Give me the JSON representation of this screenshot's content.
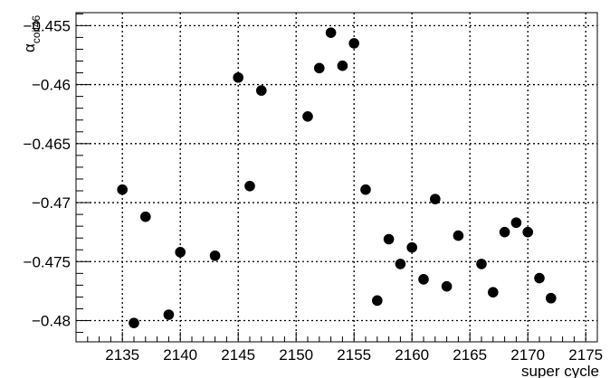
{
  "chart_data": {
    "type": "scatter",
    "title": "",
    "xlabel": "super cycle",
    "ylabel": "α_{coil46}",
    "xlim": [
      2131,
      2176
    ],
    "ylim": [
      -0.4818,
      -0.4539
    ],
    "xticks": [
      2135,
      2140,
      2145,
      2150,
      2155,
      2160,
      2165,
      2170,
      2175
    ],
    "xtick_labels": [
      "2135",
      "2140",
      "2145",
      "2150",
      "2155",
      "2160",
      "2165",
      "2170",
      "2175"
    ],
    "yticks": [
      -0.48,
      -0.475,
      -0.47,
      -0.465,
      -0.46,
      -0.455
    ],
    "ytick_labels": [
      "−0.48",
      "−0.475",
      "−0.47",
      "−0.465",
      "−0.46",
      "−0.455"
    ],
    "grid": true,
    "marker_color": "#000000",
    "x": [
      2135,
      2136,
      2137,
      2139,
      2140,
      2143,
      2145,
      2146,
      2147,
      2151,
      2152,
      2153,
      2154,
      2155,
      2156,
      2157,
      2158,
      2159,
      2160,
      2161,
      2162,
      2163,
      2164,
      2166,
      2167,
      2168,
      2169,
      2170,
      2171,
      2172
    ],
    "y": [
      -0.4689,
      -0.4802,
      -0.4712,
      -0.4795,
      -0.4742,
      -0.4745,
      -0.4594,
      -0.4686,
      -0.4605,
      -0.4627,
      -0.4586,
      -0.4556,
      -0.4584,
      -0.4565,
      -0.4689,
      -0.4783,
      -0.4731,
      -0.4752,
      -0.4738,
      -0.4765,
      -0.4697,
      -0.4771,
      -0.4728,
      -0.4752,
      -0.4776,
      -0.4725,
      -0.4717,
      -0.4725,
      -0.4764,
      -0.4781
    ]
  }
}
